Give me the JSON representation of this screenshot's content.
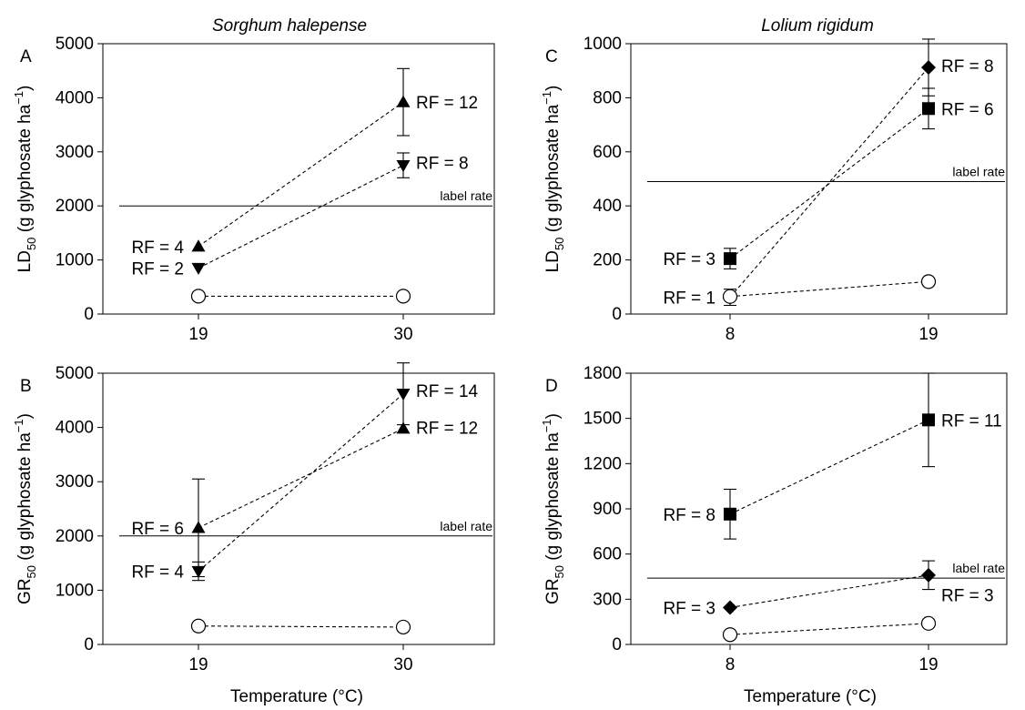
{
  "figure": {
    "col_titles": [
      "Sorghum halepense",
      "Lolium rigidum"
    ],
    "x_title": "Temperature (°C)"
  },
  "chart_data": [
    {
      "id": "A",
      "type": "scatter",
      "letter": "A",
      "ylabel_main": "LD",
      "ylabel_sub": "50",
      "ylabel_rest": " (g glyphosate ha",
      "ylabel_sup": "−1",
      "ylabel_end": ")",
      "categories": [
        "19",
        "30"
      ],
      "ylim": [
        0,
        5000
      ],
      "yticks": [
        0,
        1000,
        2000,
        3000,
        4000,
        5000
      ],
      "ref_line": {
        "y": 2000,
        "label": "label rate"
      },
      "series": [
        {
          "marker": "triangle-up",
          "values": [
            1250,
            3920
          ],
          "err": [
            null,
            620
          ]
        },
        {
          "marker": "triangle-down",
          "values": [
            850,
            2750
          ],
          "err": [
            null,
            230
          ]
        },
        {
          "marker": "circle-open",
          "values": [
            330,
            330
          ],
          "err": [
            null,
            null
          ]
        }
      ],
      "annotations": [
        {
          "text": "RF = 4",
          "x": "19",
          "y": 1250,
          "side": "left"
        },
        {
          "text": "RF = 2",
          "x": "19",
          "y": 850,
          "side": "left"
        },
        {
          "text": "RF = 12",
          "x": "30",
          "y": 3920,
          "side": "right"
        },
        {
          "text": "RF = 8",
          "x": "30",
          "y": 2800,
          "side": "right"
        }
      ]
    },
    {
      "id": "B",
      "type": "scatter",
      "letter": "B",
      "ylabel_main": "GR",
      "ylabel_sub": "50",
      "ylabel_rest": " (g glyphosate ha",
      "ylabel_sup": "−1",
      "ylabel_end": ")",
      "categories": [
        "19",
        "30"
      ],
      "ylim": [
        0,
        5000
      ],
      "yticks": [
        0,
        1000,
        2000,
        3000,
        4000,
        5000
      ],
      "ref_line": {
        "y": 2000,
        "label": "label rate"
      },
      "series": [
        {
          "marker": "triangle-up",
          "values": [
            2150,
            3980
          ],
          "err": [
            900,
            null
          ]
        },
        {
          "marker": "triangle-down",
          "values": [
            1350,
            4620
          ],
          "err": [
            170,
            570
          ]
        },
        {
          "marker": "circle-open",
          "values": [
            340,
            320
          ],
          "err": [
            null,
            null
          ]
        }
      ],
      "annotations": [
        {
          "text": "RF = 6",
          "x": "19",
          "y": 2150,
          "side": "left"
        },
        {
          "text": "RF = 4",
          "x": "19",
          "y": 1350,
          "side": "left"
        },
        {
          "text": "RF = 14",
          "x": "30",
          "y": 4680,
          "side": "right"
        },
        {
          "text": "RF = 12",
          "x": "30",
          "y": 4000,
          "side": "right"
        }
      ]
    },
    {
      "id": "C",
      "type": "scatter",
      "letter": "C",
      "ylabel_main": "LD",
      "ylabel_sub": "50",
      "ylabel_rest": " (g glyphosate ha",
      "ylabel_sup": "−1",
      "ylabel_end": ")",
      "categories": [
        "8",
        "19"
      ],
      "ylim": [
        0,
        1000
      ],
      "yticks": [
        0,
        200,
        400,
        600,
        800,
        1000
      ],
      "ref_line": {
        "y": 490,
        "label": "label rate"
      },
      "series": [
        {
          "marker": "square",
          "values": [
            205,
            760
          ],
          "err": [
            38,
            75
          ]
        },
        {
          "marker": "diamond",
          "values": [
            62,
            912
          ],
          "err": [
            30,
            105
          ]
        },
        {
          "marker": "circle-open",
          "values": [
            65,
            120
          ],
          "err": [
            null,
            null
          ]
        }
      ],
      "annotations": [
        {
          "text": "RF = 3",
          "x": "8",
          "y": 205,
          "side": "left"
        },
        {
          "text": "RF = 1",
          "x": "8",
          "y": 62,
          "side": "left"
        },
        {
          "text": "RF = 8",
          "x": "19",
          "y": 920,
          "side": "right"
        },
        {
          "text": "RF = 6",
          "x": "19",
          "y": 760,
          "side": "right"
        }
      ]
    },
    {
      "id": "D",
      "type": "scatter",
      "letter": "D",
      "ylabel_main": "GR",
      "ylabel_sub": "50",
      "ylabel_rest": " (g glyphosate ha",
      "ylabel_sup": "−1",
      "ylabel_end": ")",
      "categories": [
        "8",
        "19"
      ],
      "ylim": [
        0,
        1800
      ],
      "yticks": [
        0,
        300,
        600,
        900,
        1200,
        1500,
        1800
      ],
      "ref_line": {
        "y": 440,
        "label": "label rate"
      },
      "series": [
        {
          "marker": "square",
          "values": [
            865,
            1490
          ],
          "err": [
            165,
            310
          ]
        },
        {
          "marker": "diamond",
          "values": [
            245,
            460
          ],
          "err": [
            null,
            95
          ]
        },
        {
          "marker": "circle-open",
          "values": [
            65,
            140
          ],
          "err": [
            null,
            null
          ]
        }
      ],
      "annotations": [
        {
          "text": "RF = 8",
          "x": "8",
          "y": 865,
          "side": "left"
        },
        {
          "text": "RF = 3",
          "x": "8",
          "y": 245,
          "side": "left"
        },
        {
          "text": "RF = 11",
          "x": "19",
          "y": 1490,
          "side": "right"
        },
        {
          "text": "RF = 3",
          "x": "19",
          "y": 330,
          "side": "right"
        }
      ]
    }
  ]
}
